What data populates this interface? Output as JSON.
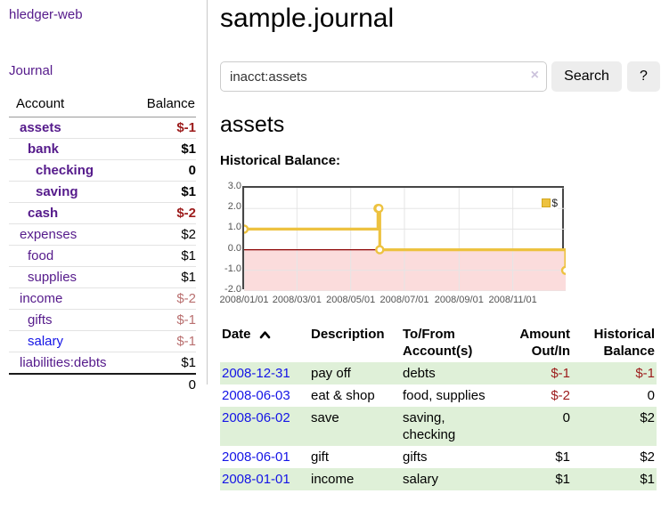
{
  "app": {
    "title": "hledger-web"
  },
  "sidebar": {
    "journal_link": "Journal",
    "accounts": {
      "account_header": "Account",
      "balance_header": "Balance",
      "rows": [
        {
          "name": "assets",
          "balance": "$-1",
          "depth": 1,
          "bold": true,
          "tone": "neg"
        },
        {
          "name": "bank",
          "balance": "$1",
          "depth": 2,
          "bold": true,
          "tone": ""
        },
        {
          "name": "checking",
          "balance": "0",
          "depth": 3,
          "bold": true,
          "tone": ""
        },
        {
          "name": "saving",
          "balance": "$1",
          "depth": 3,
          "bold": true,
          "tone": ""
        },
        {
          "name": "cash",
          "balance": "$-2",
          "depth": 2,
          "bold": true,
          "tone": "neg"
        },
        {
          "name": "expenses",
          "balance": "$2",
          "depth": 1,
          "bold": false,
          "tone": ""
        },
        {
          "name": "food",
          "balance": "$1",
          "depth": 2,
          "bold": false,
          "tone": ""
        },
        {
          "name": "supplies",
          "balance": "$1",
          "depth": 2,
          "bold": false,
          "tone": ""
        },
        {
          "name": "income",
          "balance": "$-2",
          "depth": 1,
          "bold": false,
          "tone": "soft"
        },
        {
          "name": "gifts",
          "balance": "$-1",
          "depth": 2,
          "bold": false,
          "tone": "soft"
        },
        {
          "name": "salary",
          "balance": "$-1",
          "depth": 2,
          "bold": false,
          "tone": "soft",
          "link": "blue"
        },
        {
          "name": "liabilities:debts",
          "balance": "$1",
          "depth": 1,
          "bold": false,
          "tone": ""
        }
      ],
      "total": "0"
    }
  },
  "header": {
    "title": "sample.journal"
  },
  "search": {
    "value": "inacct:assets",
    "clear_icon": "×",
    "button_label": "Search",
    "help_label": "?"
  },
  "account_page": {
    "title": "assets",
    "chart_label": "Historical Balance:"
  },
  "chart_data": {
    "type": "line",
    "step": true,
    "title": "Historical Balance:",
    "series": [
      {
        "name": "$",
        "color": "#edc240",
        "points": [
          [
            "2008-01-01",
            1
          ],
          [
            "2008-06-01",
            2
          ],
          [
            "2008-06-02",
            2
          ],
          [
            "2008-06-03",
            0
          ],
          [
            "2008-12-31",
            -1
          ]
        ]
      }
    ],
    "xrange": [
      "2008-01-01",
      "2008-12-31"
    ],
    "ylim": [
      -2.0,
      3.0
    ],
    "yticks": [
      3.0,
      2.0,
      1.0,
      0.0,
      -1.0,
      -2.0
    ],
    "xticks": [
      "2008/01/01",
      "2008/03/01",
      "2008/05/01",
      "2008/07/01",
      "2008/09/01",
      "2008/11/01"
    ],
    "grid": true,
    "legend_position": "top-right",
    "negative_region_color": "#fbdcdc",
    "zero_line_color": "#8b0000",
    "grid_color": "#e5e5e5"
  },
  "register": {
    "headers": {
      "date": "Date",
      "description": "Description",
      "account": "To/From Account(s)",
      "amount": "Amount Out/In",
      "balance": "Historical Balance"
    },
    "rows": [
      {
        "date": "2008-12-31",
        "description": "pay off",
        "account": "debts",
        "amount": "$-1",
        "balance": "$-1",
        "amount_neg": true,
        "balance_neg": true
      },
      {
        "date": "2008-06-03",
        "description": "eat & shop",
        "account": "food, supplies",
        "amount": "$-2",
        "balance": "0",
        "amount_neg": true,
        "balance_neg": false
      },
      {
        "date": "2008-06-02",
        "description": "save",
        "account": "saving, checking",
        "amount": "0",
        "balance": "$2",
        "amount_neg": false,
        "balance_neg": false
      },
      {
        "date": "2008-06-01",
        "description": "gift",
        "account": "gifts",
        "amount": "$1",
        "balance": "$2",
        "amount_neg": false,
        "balance_neg": false
      },
      {
        "date": "2008-01-01",
        "description": "income",
        "account": "salary",
        "amount": "$1",
        "balance": "$1",
        "amount_neg": false,
        "balance_neg": false
      }
    ]
  },
  "colors": {
    "link_purple": "#551a8b",
    "link_blue": "#1414e6",
    "negative_strong": "#9c1b1b",
    "negative_soft": "#b96f6f",
    "row_stripe_green": "#dff0d8",
    "series_gold": "#edc240"
  }
}
